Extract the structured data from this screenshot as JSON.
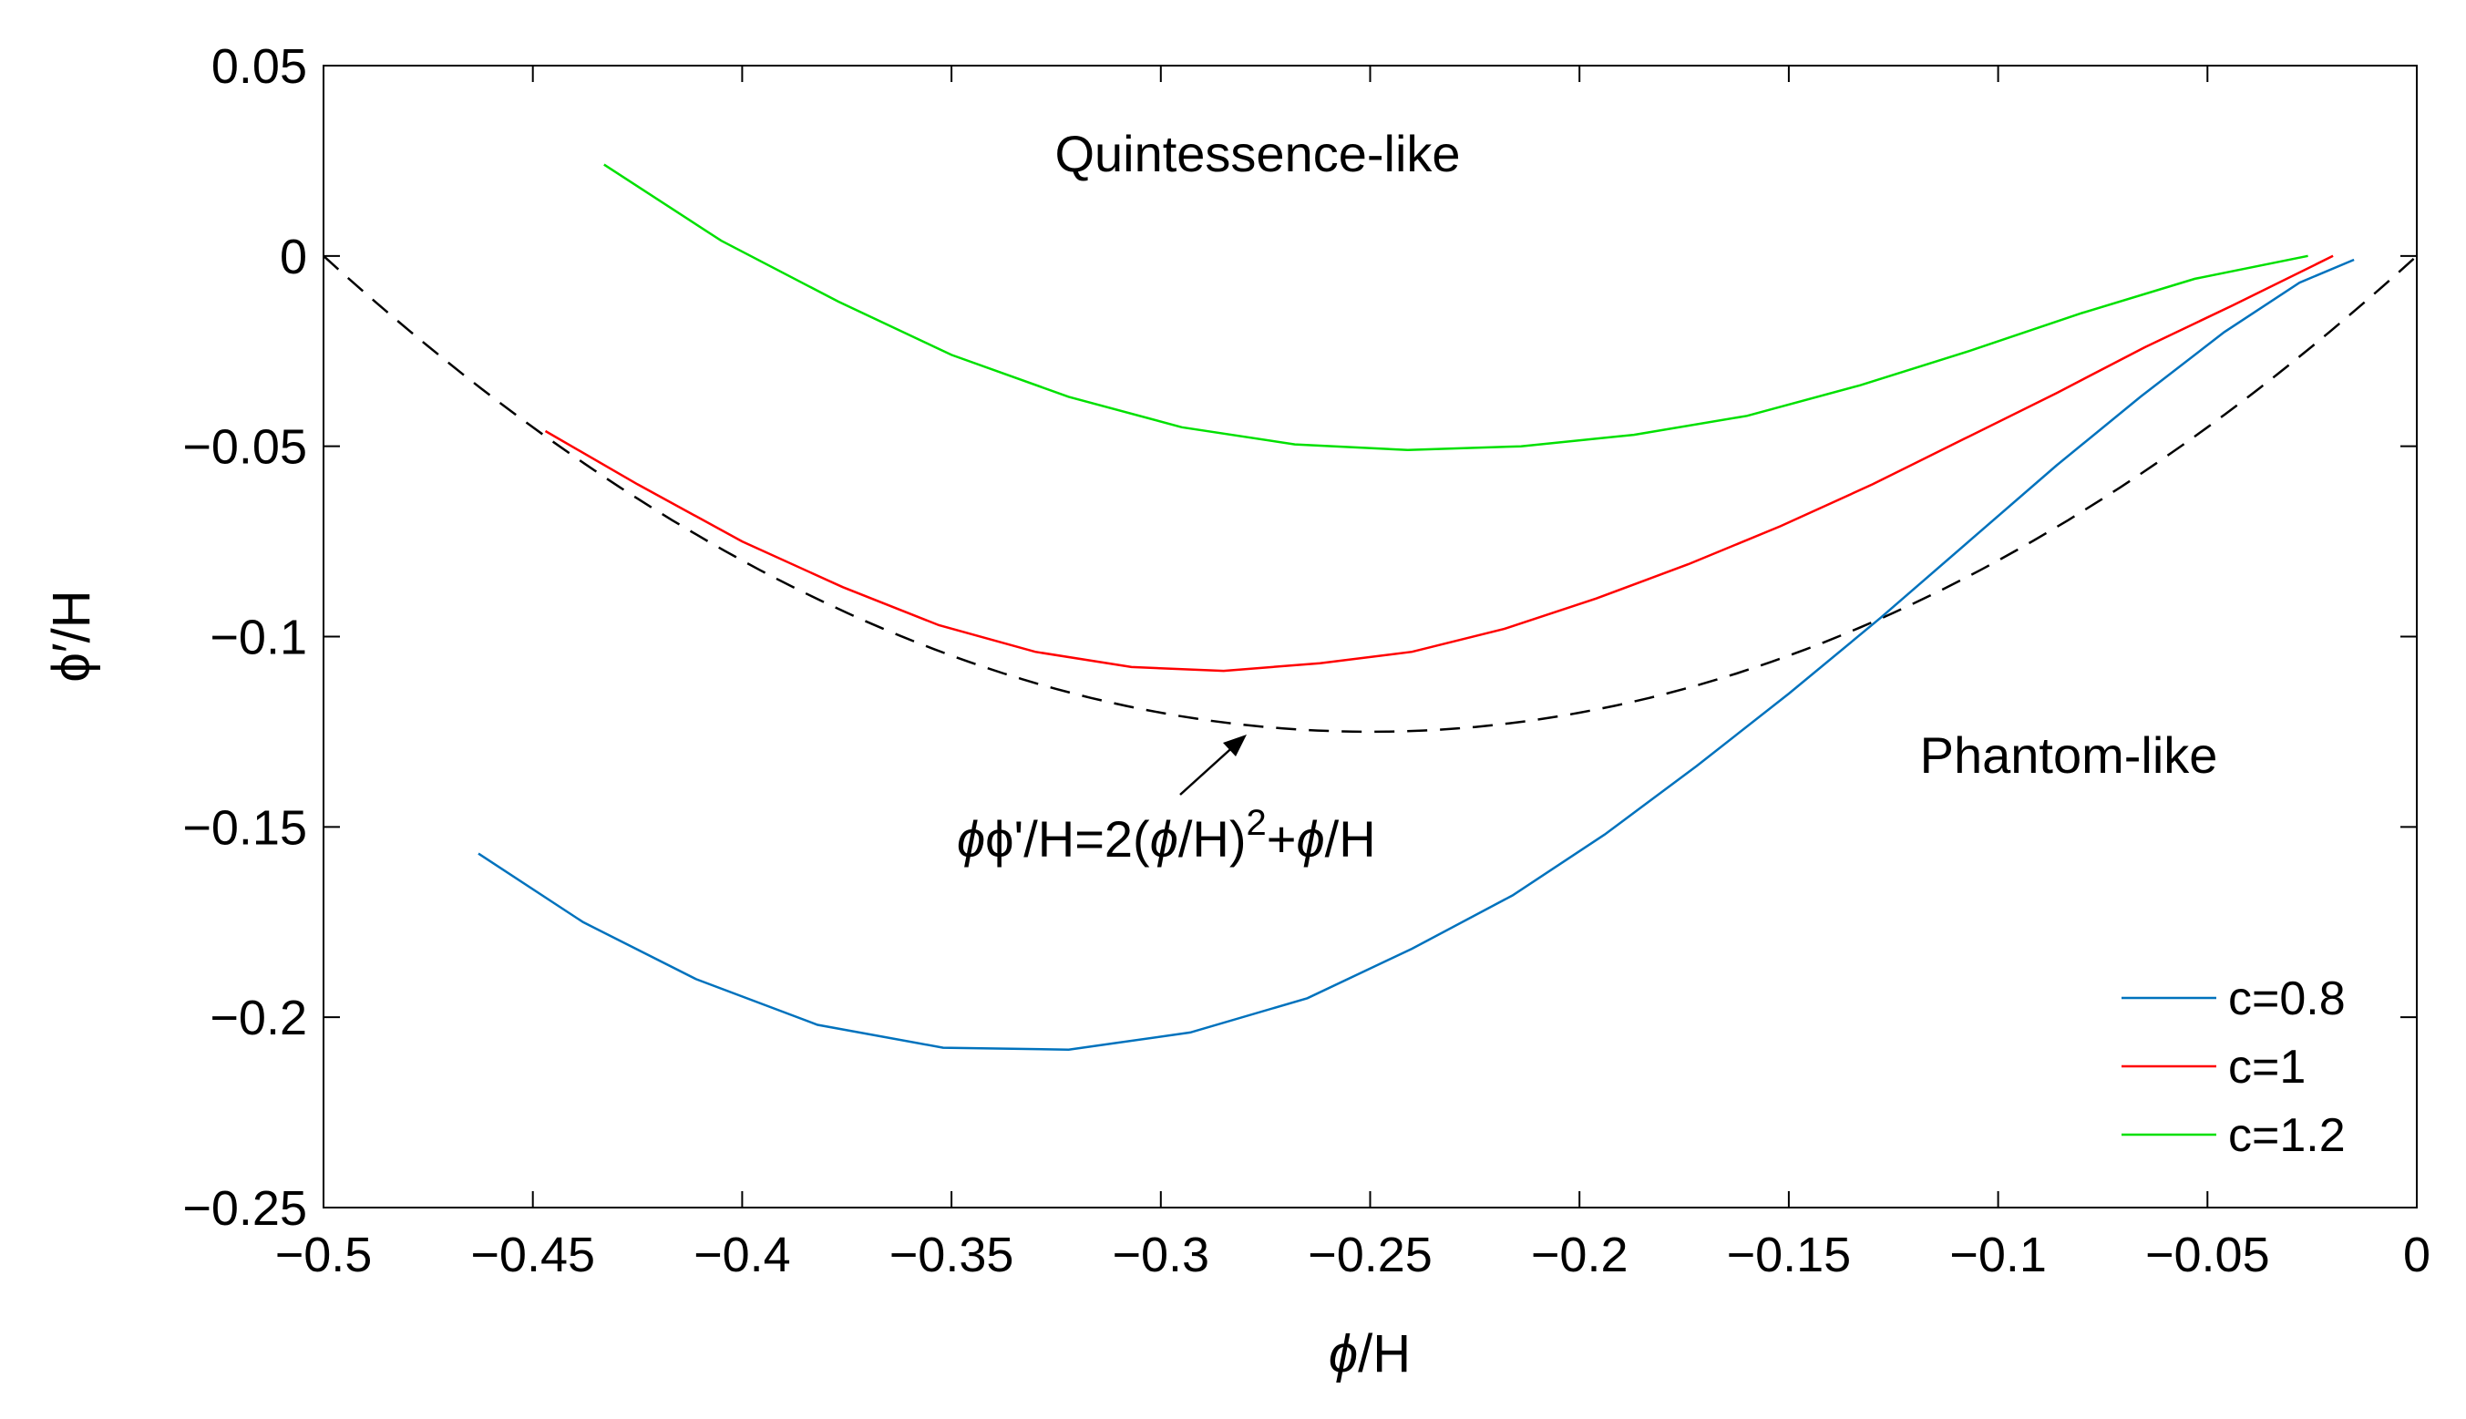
{
  "chart_data": {
    "type": "line",
    "title": "",
    "xlabel": "ϕ/H",
    "ylabel": "ϕ′/H",
    "xlim": [
      -0.5,
      0
    ],
    "ylim": [
      -0.25,
      0.05
    ],
    "xticks": [
      -0.5,
      -0.45,
      -0.4,
      -0.35,
      -0.3,
      -0.25,
      -0.2,
      -0.15,
      -0.1,
      -0.05,
      0
    ],
    "xtick_labels": [
      "−0.5",
      "−0.45",
      "−0.4",
      "−0.35",
      "−0.3",
      "−0.25",
      "−0.2",
      "−0.15",
      "−0.1",
      "−0.05",
      "0"
    ],
    "yticks": [
      0.05,
      0,
      -0.05,
      -0.1,
      -0.15,
      -0.2,
      -0.25
    ],
    "ytick_labels": [
      "0.05",
      "0",
      "−0.05",
      "−0.1",
      "−0.15",
      "−0.2",
      "−0.25"
    ],
    "grid": false,
    "legend_position": "bottom-right",
    "series": [
      {
        "name": "c=0.8",
        "color": "#0072bd",
        "x": [
          -0.463,
          -0.438,
          -0.411,
          -0.382,
          -0.352,
          -0.322,
          -0.293,
          -0.265,
          -0.24,
          -0.216,
          -0.194,
          -0.172,
          -0.15,
          -0.128,
          -0.107,
          -0.086,
          -0.066,
          -0.046,
          -0.028,
          -0.015
        ],
        "y": [
          -0.157,
          -0.175,
          -0.19,
          -0.202,
          -0.208,
          -0.2085,
          -0.204,
          -0.195,
          -0.182,
          -0.168,
          -0.152,
          -0.134,
          -0.115,
          -0.095,
          -0.075,
          -0.055,
          -0.037,
          -0.02,
          -0.007,
          -0.001
        ]
      },
      {
        "name": "c=1",
        "color": "#ff0000",
        "x": [
          -0.447,
          -0.425,
          -0.4,
          -0.376,
          -0.353,
          -0.33,
          -0.307,
          -0.285,
          -0.262,
          -0.24,
          -0.218,
          -0.196,
          -0.174,
          -0.152,
          -0.13,
          -0.108,
          -0.086,
          -0.065,
          -0.044,
          -0.02
        ],
        "y": [
          -0.046,
          -0.06,
          -0.075,
          -0.087,
          -0.097,
          -0.104,
          -0.108,
          -0.109,
          -0.107,
          -0.104,
          -0.098,
          -0.09,
          -0.081,
          -0.071,
          -0.06,
          -0.048,
          -0.036,
          -0.024,
          -0.013,
          0.0
        ]
      },
      {
        "name": "c=1.2",
        "color": "#00e000",
        "x": [
          -0.433,
          -0.405,
          -0.377,
          -0.35,
          -0.322,
          -0.295,
          -0.268,
          -0.241,
          -0.214,
          -0.187,
          -0.16,
          -0.133,
          -0.107,
          -0.08,
          -0.053,
          -0.026
        ],
        "y": [
          0.024,
          0.004,
          -0.012,
          -0.026,
          -0.037,
          -0.045,
          -0.0495,
          -0.051,
          -0.05,
          -0.047,
          -0.042,
          -0.034,
          -0.025,
          -0.015,
          -0.006,
          0.0
        ]
      }
    ],
    "reference_curve": {
      "label": "ϕ'/H=2(ϕ/H)²+ϕ/H",
      "equation": "y = 2x^2 + x",
      "style": "dashed",
      "color": "#000000",
      "x_range": [
        -0.5,
        0
      ]
    },
    "annotations": {
      "quintessence": "Quintessence-like",
      "phantom": "Phantom-like",
      "equation_lhs": "ϕ'/H=2(",
      "phi_symbol": "ϕ",
      "equation_mid": "/H)",
      "superscript": "2",
      "equation_plus": "+",
      "equation_end": "/H"
    }
  }
}
